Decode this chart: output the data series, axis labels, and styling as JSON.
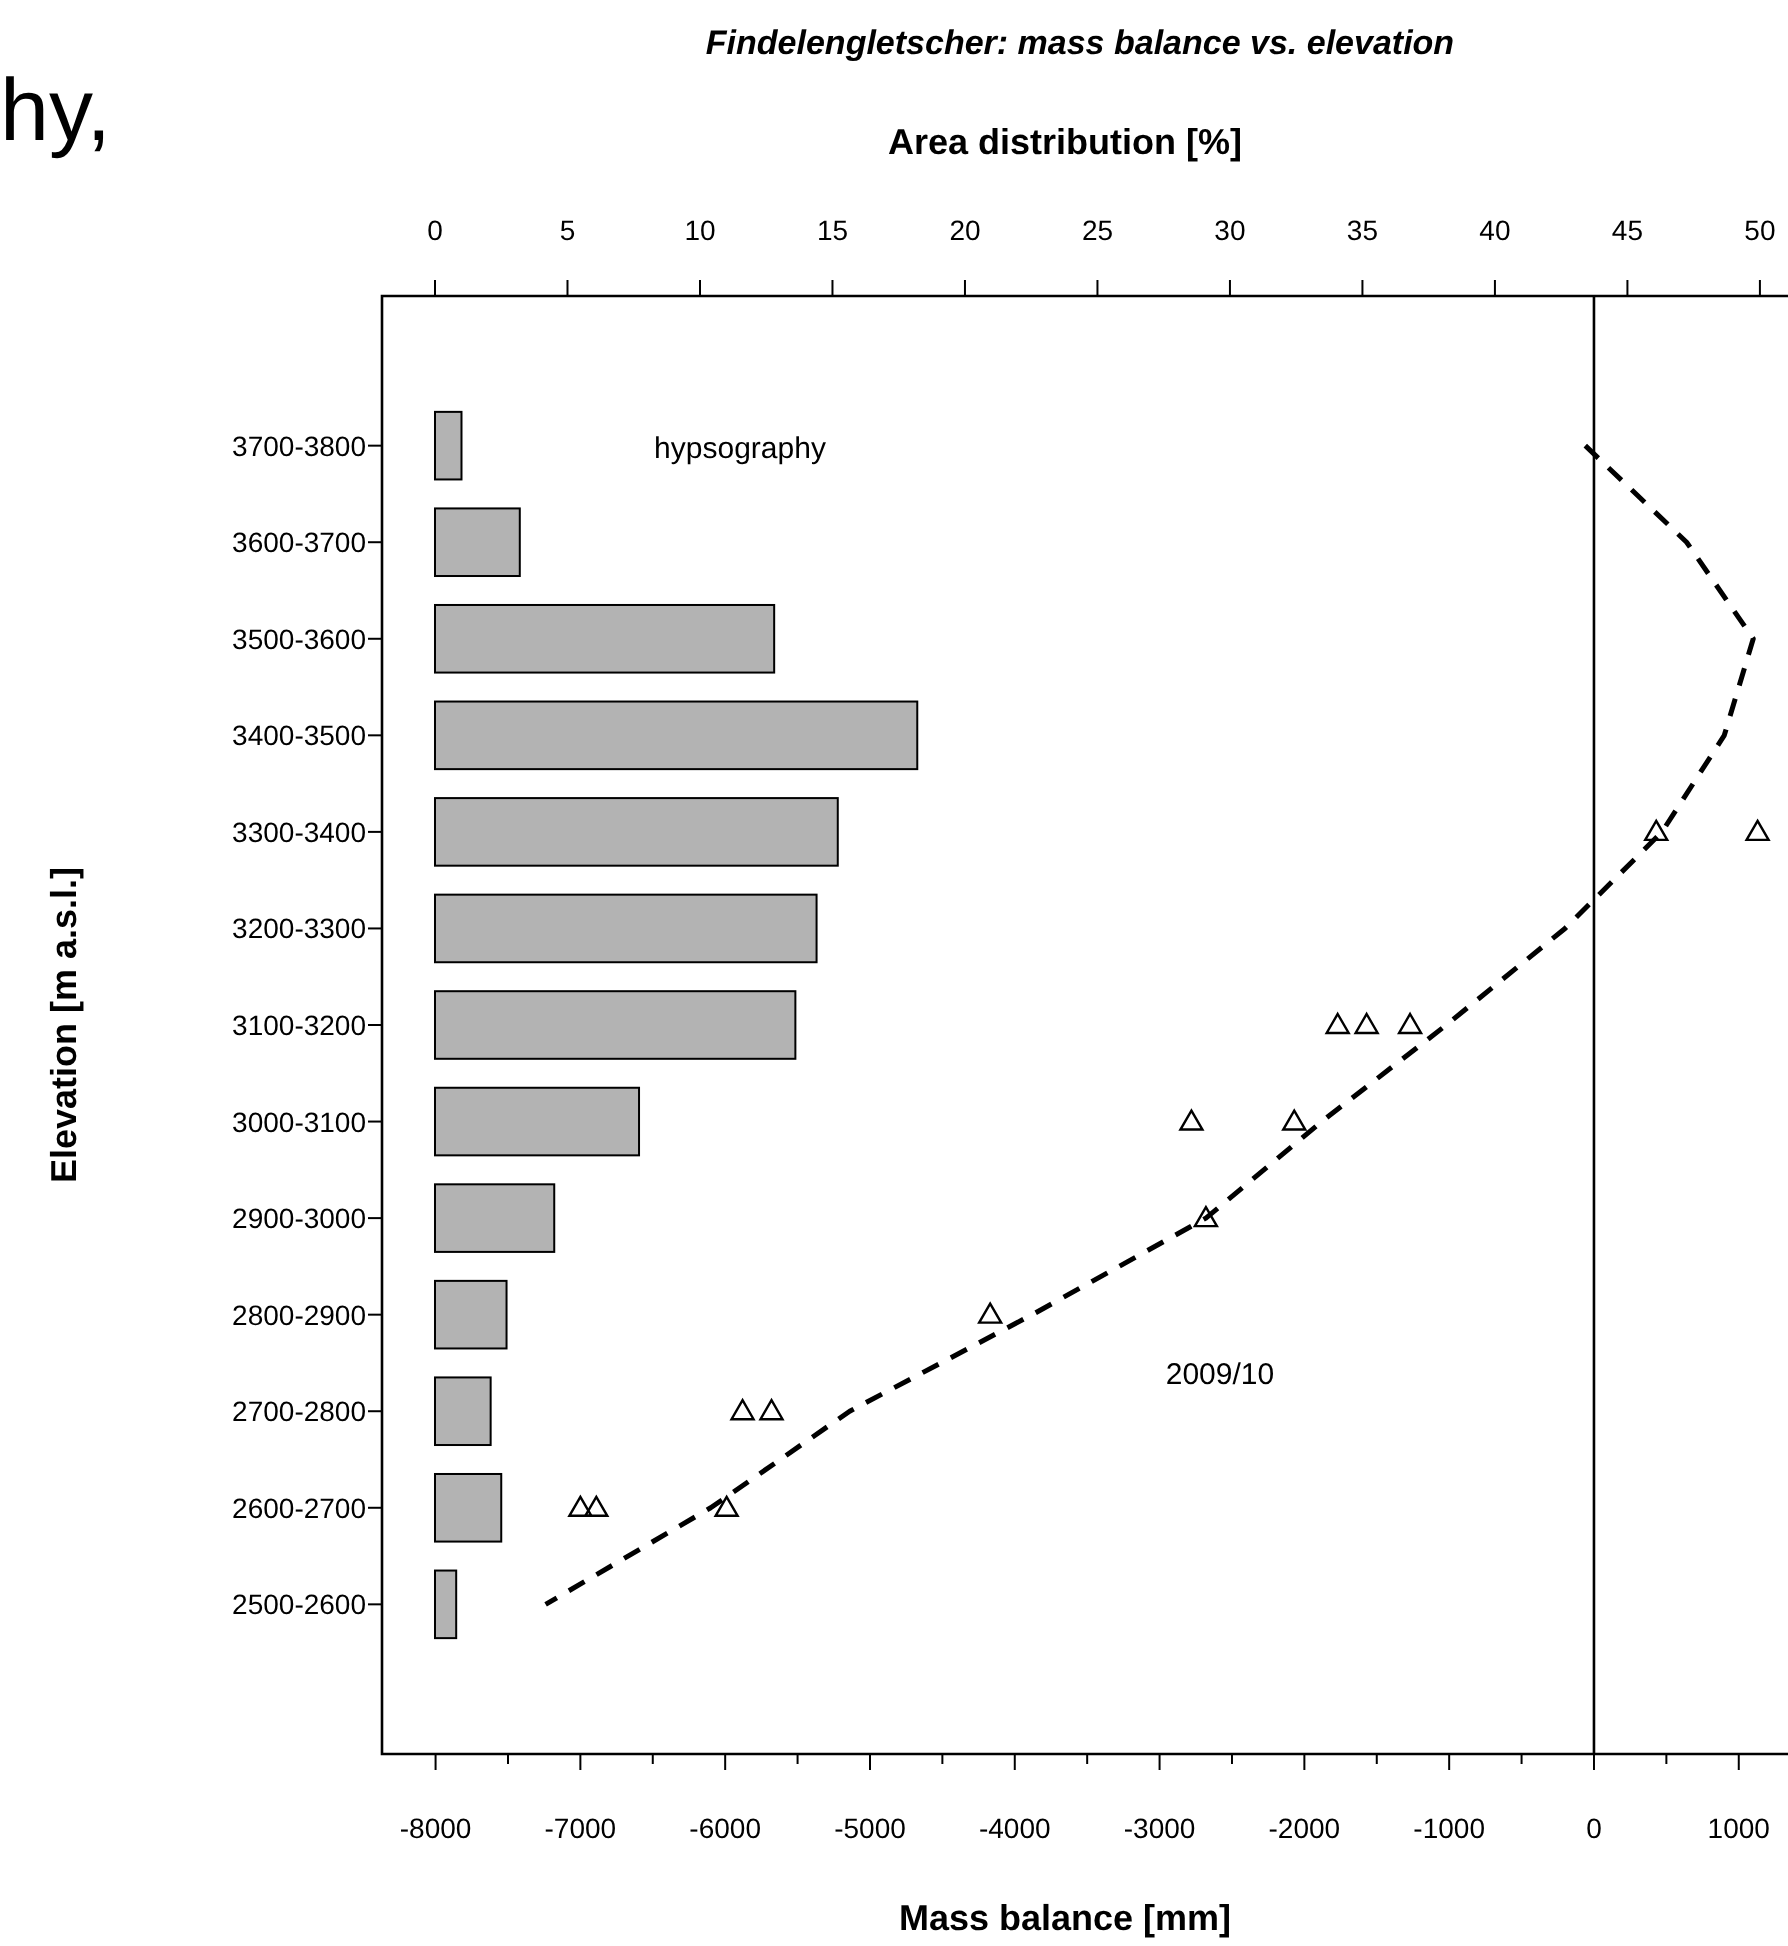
{
  "chart_data": {
    "type": "bar",
    "orientation": "horizontal",
    "title": "Findelengletscher: mass balance vs. elevation",
    "xlabel": "Mass balance [mm]",
    "x2label": "Area distribution [%]",
    "ylabel": "Elevation [m a.s.l.]",
    "categories": [
      "3700-3800",
      "3600-3700",
      "3500-3600",
      "3400-3500",
      "3300-3400",
      "3200-3300",
      "3100-3200",
      "3000-3100",
      "2900-3000",
      "2800-2900",
      "2700-2800",
      "2600-2700",
      "2500-2600"
    ],
    "xlim": [
      -8370,
      1340
    ],
    "xticks": [
      -8000,
      -7000,
      -6000,
      -5000,
      -4000,
      -3000,
      -2000,
      -1000,
      0,
      1000
    ],
    "x2lim": [
      -2,
      51.06
    ],
    "x2ticks": [
      0,
      5,
      10,
      15,
      20,
      25,
      30,
      35,
      40,
      45,
      50
    ],
    "series": [
      {
        "axis": "x2",
        "color": "#b3b3b3",
        "values": [
          1.0,
          3.2,
          12.8,
          18.2,
          15.2,
          14.4,
          13.6,
          7.7,
          4.5,
          2.7,
          2.1,
          2.5,
          0.8
        ]
      },
      {
        "type": "line",
        "color": "#000000",
        "line_style": "dashed",
        "values": [
          -60,
          640,
          1100,
          900,
          470,
          -200,
          -1020,
          -1880,
          -2680,
          -3880,
          -5140,
          -6100,
          -7240
        ]
      },
      {
        "type": "scatter",
        "color": "#000000",
        "marker": "triangle",
        "values": [
          null,
          null,
          null,
          null,
          430,
          null,
          -1570,
          -2780,
          -2680,
          -4170,
          -5880,
          -7000,
          null
        ]
      },
      {
        "type": "scatter",
        "color": "#000000",
        "marker": "triangle",
        "values": [
          null,
          null,
          null,
          null,
          1130,
          null,
          -1770,
          -2070,
          null,
          null,
          -5680,
          -6890,
          null
        ]
      },
      {
        "type": "scatter",
        "color": "#000000",
        "marker": "triangle",
        "values": [
          null,
          null,
          null,
          null,
          null,
          null,
          -1270,
          null,
          null,
          null,
          null,
          -5990,
          null
        ]
      }
    ],
    "ref_lines": [
      {
        "axis": "x",
        "value": 0,
        "color": "#000000"
      }
    ],
    "annotations": [
      "hy,",
      "hypsography",
      "2009/10"
    ],
    "grid": false
  }
}
